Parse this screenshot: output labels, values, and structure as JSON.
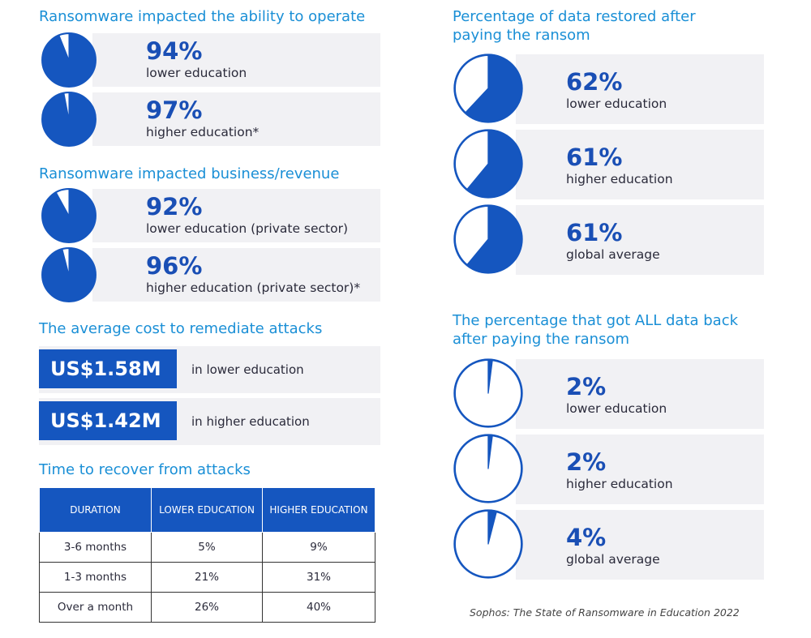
{
  "colors": {
    "title": "#1a8fd6",
    "accent": "#1556bf",
    "band": "#f1f1f4"
  },
  "chart_data": [
    {
      "type": "pie",
      "title": "Ransomware impacted the ability to operate",
      "items": [
        {
          "value": 94,
          "value_label": "94%",
          "label": "lower education"
        },
        {
          "value": 97,
          "value_label": "97%",
          "label": "higher education*"
        }
      ]
    },
    {
      "type": "pie",
      "title": "Ransomware impacted business/revenue",
      "items": [
        {
          "value": 92,
          "value_label": "92%",
          "label": "lower education (private sector)"
        },
        {
          "value": 96,
          "value_label": "96%",
          "label": "higher education (private sector)*"
        }
      ]
    },
    {
      "type": "bar",
      "title": "The average cost to remediate attacks",
      "items": [
        {
          "value": "US$1.58M",
          "label": "in lower education"
        },
        {
          "value": "US$1.42M",
          "label": "in higher education"
        }
      ]
    },
    {
      "type": "table",
      "title": "Time to recover from attacks",
      "columns": [
        "DURATION",
        "LOWER EDUCATION",
        "HIGHER EDUCATION"
      ],
      "rows": [
        [
          "3-6 months",
          "5%",
          "9%"
        ],
        [
          "1-3 months",
          "21%",
          "31%"
        ],
        [
          "Over a month",
          "26%",
          "40%"
        ]
      ]
    },
    {
      "type": "pie",
      "title": "Percentage of data restored after paying the ransom",
      "items": [
        {
          "value": 62,
          "value_label": "62%",
          "label": "lower education"
        },
        {
          "value": 61,
          "value_label": "61%",
          "label": "higher education"
        },
        {
          "value": 61,
          "value_label": "61%",
          "label": "global average"
        }
      ]
    },
    {
      "type": "pie",
      "title": "The percentage that got ALL data back after paying the ransom",
      "items": [
        {
          "value": 2,
          "value_label": "2%",
          "label": "lower education"
        },
        {
          "value": 2,
          "value_label": "2%",
          "label": "higher education"
        },
        {
          "value": 4,
          "value_label": "4%",
          "label": "global average"
        }
      ]
    }
  ],
  "source": "Sophos: The State of Ransomware in Education 2022"
}
